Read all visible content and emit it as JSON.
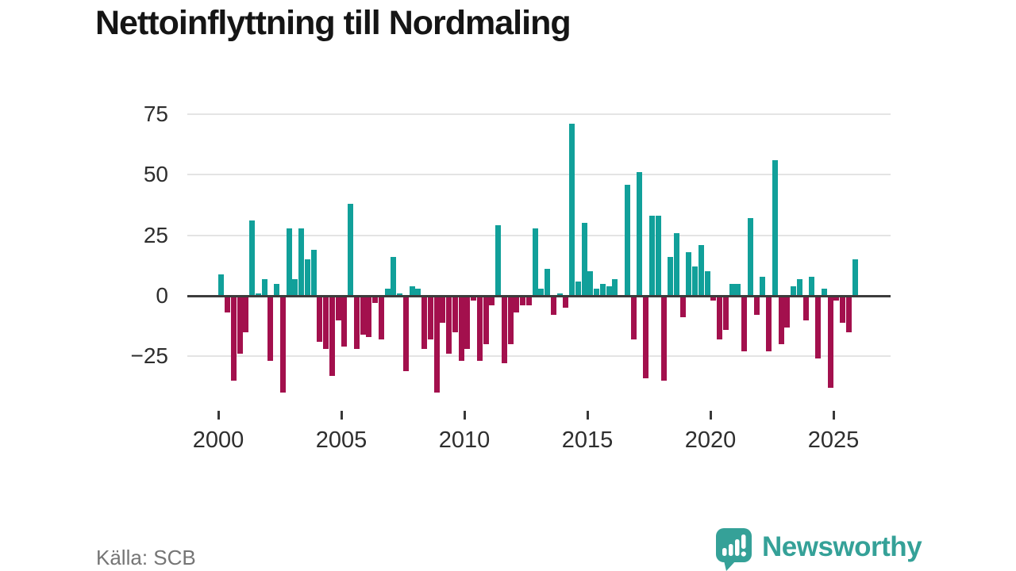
{
  "title": "Nettoinflyttning till Nordmaling",
  "source": "Källa: SCB",
  "branding": {
    "name": "Newsworthy"
  },
  "colors": {
    "positive_bar": "#11a09a",
    "negative_bar": "#a3104d",
    "zero_line": "#3c3c3c",
    "gridline": "#e4e4e4",
    "axis_text": "#2e2e2e",
    "title_text": "#151515",
    "source_text": "#757575",
    "brand_teal": "#35a198",
    "background": "#ffffff"
  },
  "y_axis": {
    "ticks": [
      {
        "label": "75",
        "value": 75
      },
      {
        "label": "50",
        "value": 50
      },
      {
        "label": "25",
        "value": 25
      },
      {
        "label": "0",
        "value": 0
      },
      {
        "label": "−25",
        "value": -25
      }
    ]
  },
  "x_axis": {
    "ticks": [
      {
        "label": "2000",
        "year": 2000
      },
      {
        "label": "2005",
        "year": 2005
      },
      {
        "label": "2010",
        "year": 2010
      },
      {
        "label": "2015",
        "year": 2015
      },
      {
        "label": "2020",
        "year": 2020
      },
      {
        "label": "2025",
        "year": 2025
      }
    ]
  },
  "chart_data": {
    "type": "bar",
    "title": "Nettoinflyttning till Nordmaling",
    "frequency": "quarterly",
    "start_year": 2000,
    "end_year": 2025,
    "ylim": [
      -45,
      80
    ],
    "y_ticks": [
      75,
      50,
      25,
      0,
      -25
    ],
    "x_tick_years": [
      2000,
      2005,
      2010,
      2015,
      2020,
      2025
    ],
    "grid": "horizontal",
    "legend": "none",
    "series_by_year": [
      {
        "year": 2000,
        "values": [
          9,
          -7,
          -35,
          -24
        ]
      },
      {
        "year": 2001,
        "values": [
          -15,
          31,
          1,
          7
        ]
      },
      {
        "year": 2002,
        "values": [
          -27,
          5,
          -40,
          28
        ]
      },
      {
        "year": 2003,
        "values": [
          7,
          28,
          15,
          19
        ]
      },
      {
        "year": 2004,
        "values": [
          -19,
          -22,
          -33,
          -10
        ]
      },
      {
        "year": 2005,
        "values": [
          -21,
          38,
          -22,
          -16
        ]
      },
      {
        "year": 2006,
        "values": [
          -17,
          -3,
          -18,
          3
        ]
      },
      {
        "year": 2007,
        "values": [
          16,
          1,
          -31,
          4
        ]
      },
      {
        "year": 2008,
        "values": [
          3,
          -22,
          -18,
          -40
        ]
      },
      {
        "year": 2009,
        "values": [
          -11,
          -24,
          -15,
          -27
        ]
      },
      {
        "year": 2010,
        "values": [
          -22,
          -2,
          -27,
          -20
        ]
      },
      {
        "year": 2011,
        "values": [
          -4,
          29,
          -28,
          -20
        ]
      },
      {
        "year": 2012,
        "values": [
          -7,
          -4,
          -4,
          28
        ]
      },
      {
        "year": 2013,
        "values": [
          3,
          11,
          -8,
          1
        ]
      },
      {
        "year": 2014,
        "values": [
          -5,
          71,
          6,
          30
        ]
      },
      {
        "year": 2015,
        "values": [
          10,
          3,
          5,
          4
        ]
      },
      {
        "year": 2016,
        "values": [
          7,
          0,
          46,
          -18
        ]
      },
      {
        "year": 2017,
        "values": [
          51,
          -34,
          33,
          33
        ]
      },
      {
        "year": 2018,
        "values": [
          -35,
          16,
          26,
          -9
        ]
      },
      {
        "year": 2019,
        "values": [
          18,
          12,
          21,
          10
        ]
      },
      {
        "year": 2020,
        "values": [
          -2,
          -18,
          -14,
          5
        ]
      },
      {
        "year": 2021,
        "values": [
          5,
          -23,
          32,
          -8
        ]
      },
      {
        "year": 2022,
        "values": [
          8,
          -23,
          56,
          -20
        ]
      },
      {
        "year": 2023,
        "values": [
          -13,
          4,
          7,
          -10
        ]
      },
      {
        "year": 2024,
        "values": [
          8,
          -26,
          3,
          -38
        ]
      },
      {
        "year": 2025,
        "values": [
          -2,
          -11,
          -15,
          15
        ]
      }
    ]
  }
}
